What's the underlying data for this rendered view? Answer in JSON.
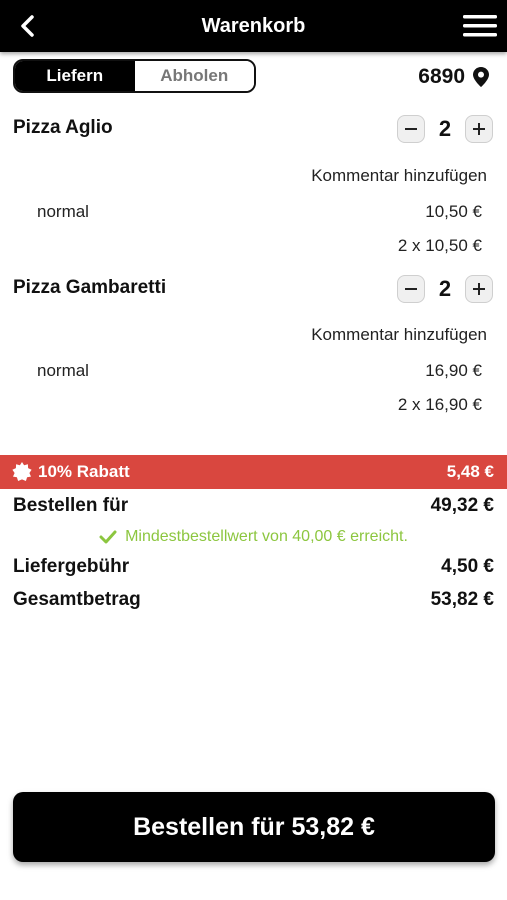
{
  "header": {
    "title": "Warenkorb",
    "back_icon": "chevron-left-icon",
    "menu_icon": "hamburger-menu-icon"
  },
  "delivery_toggle": {
    "options": [
      "Liefern",
      "Abholen"
    ],
    "selected": "Liefern"
  },
  "location": {
    "zip": "6890",
    "icon": "map-pin-icon"
  },
  "cart_items": [
    {
      "name": "Pizza Aglio",
      "quantity": "2",
      "comment_label": "Kommentar hinzufügen",
      "variant": "normal",
      "unit_price": "10,50 €",
      "line_total": "2 x 10,50 €"
    },
    {
      "name": "Pizza Gambaretti",
      "quantity": "2",
      "comment_label": "Kommentar hinzufügen",
      "variant": "normal",
      "unit_price": "16,90 €",
      "line_total": "2 x 16,90 €"
    }
  ],
  "discount": {
    "label": "10% Rabatt",
    "amount": "5,48 €",
    "icon": "badge-icon",
    "color": "#d9473f"
  },
  "summary": {
    "order_for_label": "Bestellen für",
    "order_for_value": "49,32 €",
    "min_order_text": "Mindestbestellwert von 40,00 € erreicht.",
    "min_order_icon": "check-icon",
    "min_order_color": "#8cc63f",
    "delivery_fee_label": "Liefergebühr",
    "delivery_fee_value": "4,50 €",
    "total_label": "Gesamtbetrag",
    "total_value": "53,82 €"
  },
  "checkout_button": {
    "label": "Bestellen für 53,82 €"
  }
}
